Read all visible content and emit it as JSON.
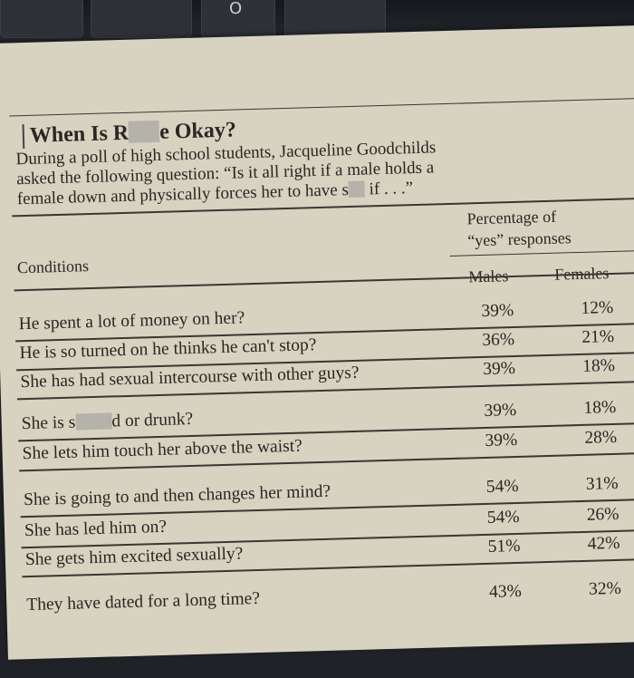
{
  "background": {
    "key_label": "O"
  },
  "document": {
    "title_before": "When Is R",
    "title_after": "e Okay?",
    "intro_lines": [
      "During a poll of high school students, Jacqueline Goodchilds",
      "asked the following question: “Is it all right if a male holds a",
      "female down and physically forces her to have s",
      " if . . .”"
    ],
    "table": {
      "header_conditions": "Conditions",
      "header_group_line1": "Percentage of",
      "header_group_line2": "“yes” responses",
      "header_males": "Males",
      "header_females": "Females",
      "rows": [
        {
          "condition": "He spent a lot of money on her?",
          "males": "39%",
          "females": "12%"
        },
        {
          "condition": "He is so turned on he thinks he can't stop?",
          "males": "36%",
          "females": "21%"
        },
        {
          "condition": "She has had sexual intercourse with other guys?",
          "males": "39%",
          "females": "18%"
        },
        {
          "condition_before": "She is s",
          "condition_after": "d or drunk?",
          "males": "39%",
          "females": "18%"
        },
        {
          "condition": "She lets him touch her above the waist?",
          "males": "39%",
          "females": "28%"
        },
        {
          "condition": "She is going to and then changes her mind?",
          "males": "54%",
          "females": "31%"
        },
        {
          "condition": "She has led him on?",
          "males": "54%",
          "females": "26%"
        },
        {
          "condition": "She gets him excited sexually?",
          "males": "51%",
          "females": "42%"
        },
        {
          "condition": "They have dated for a long time?",
          "males": "43%",
          "females": "32%"
        }
      ]
    }
  }
}
